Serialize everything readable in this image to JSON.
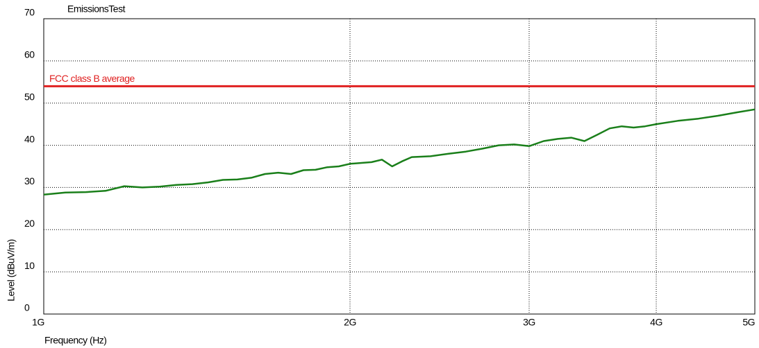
{
  "chart_data": {
    "type": "line",
    "title": "EmissionsTest",
    "xlabel": "Frequency (Hz)",
    "ylabel": "Level (dBuV/m)",
    "xscale": "log",
    "grid": true,
    "xlim": [
      1000000000,
      5000000000
    ],
    "xticks": [
      {
        "value": 1000000000,
        "label": "1G"
      },
      {
        "value": 2000000000,
        "label": "2G"
      },
      {
        "value": 3000000000,
        "label": "3G"
      },
      {
        "value": 4000000000,
        "label": "4G"
      },
      {
        "value": 5000000000,
        "label": "5G"
      }
    ],
    "ylim": [
      0,
      70
    ],
    "yticks": [
      0,
      10,
      20,
      30,
      40,
      50,
      60,
      70
    ],
    "x": [
      1000000000,
      1050000000,
      1100000000,
      1150000000,
      1200000000,
      1250000000,
      1300000000,
      1350000000,
      1400000000,
      1450000000,
      1500000000,
      1550000000,
      1600000000,
      1650000000,
      1700000000,
      1750000000,
      1800000000,
      1850000000,
      1900000000,
      1950000000,
      2000000000,
      2100000000,
      2150000000,
      2200000000,
      2250000000,
      2300000000,
      2400000000,
      2500000000,
      2600000000,
      2700000000,
      2800000000,
      2900000000,
      3000000000,
      3100000000,
      3200000000,
      3300000000,
      3400000000,
      3500000000,
      3600000000,
      3700000000,
      3800000000,
      3900000000,
      4000000000,
      4200000000,
      4400000000,
      4600000000,
      4800000000,
      5000000000
    ],
    "series": [
      {
        "name": "Level",
        "color": "#1a7f1a",
        "values": [
          28.3,
          28.8,
          28.9,
          29.2,
          30.3,
          30.0,
          30.2,
          30.6,
          30.8,
          31.2,
          31.8,
          31.9,
          32.3,
          33.2,
          33.5,
          33.2,
          34.1,
          34.2,
          34.8,
          35.0,
          35.6,
          36.0,
          36.6,
          35.0,
          36.2,
          37.2,
          37.4,
          38.0,
          38.5,
          39.2,
          40.0,
          40.2,
          39.8,
          41.0,
          41.5,
          41.8,
          41.0,
          42.5,
          44.0,
          44.5,
          44.2,
          44.5,
          45.0,
          45.8,
          46.3,
          47.0,
          47.8,
          48.5
        ]
      }
    ],
    "limit_line": {
      "label": "FCC class B average",
      "value": 54,
      "color": "#e02020"
    }
  }
}
